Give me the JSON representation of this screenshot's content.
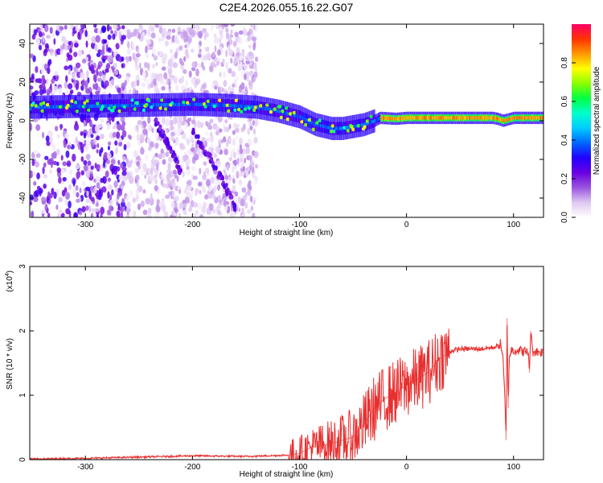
{
  "chart_data": [
    {
      "type": "heatmap",
      "title": "C2E4.2026.055.16.22.G07",
      "xlabel": "Height of straight line (km)",
      "ylabel": "Frequency (Hz)",
      "xlim": [
        -352,
        128
      ],
      "ylim": [
        -50,
        50
      ],
      "xticks": [
        -300,
        -200,
        -100,
        0,
        100
      ],
      "yticks": [
        -40,
        -20,
        0,
        20,
        40
      ],
      "colorbar": {
        "label": "Normalized spectral amplitude",
        "range": [
          0,
          1
        ],
        "ticks": [
          "0.0",
          "0.2",
          "0.4",
          "0.6",
          "0.8"
        ],
        "stops": [
          "#ffffff",
          "#e0c8f2",
          "#9a55e0",
          "#6a00e0",
          "#2200ff",
          "#0066ff",
          "#00ccff",
          "#00ffcc",
          "#00ff44",
          "#88ff00",
          "#ffff00",
          "#ff9900",
          "#ff3300",
          "#ff0066"
        ],
        "placement": "right"
      },
      "ridge": {
        "name": "dominant frequency",
        "x": [
          -352,
          -300,
          -250,
          -200,
          -170,
          -140,
          -120,
          -100,
          -85,
          -70,
          -60,
          -50,
          -40,
          -30,
          -25,
          -10,
          0,
          20,
          40,
          60,
          80,
          85,
          90,
          100,
          128
        ],
        "y": [
          7,
          7.5,
          8,
          8.5,
          8,
          7,
          5,
          2,
          -2,
          -4,
          -4,
          -3,
          -2,
          0,
          1.5,
          1,
          1.5,
          1.5,
          1.5,
          1.5,
          1.5,
          1,
          0,
          1.5,
          1.5
        ]
      },
      "secondary_tracks": [
        {
          "x": [
            -200,
            -185,
            -170,
            -160
          ],
          "y": [
            -5,
            -18,
            -33,
            -45
          ]
        },
        {
          "x": [
            -235,
            -220,
            -210
          ],
          "y": [
            0,
            -15,
            -28
          ]
        }
      ],
      "scatter_region": {
        "x": [
          -352,
          -140
        ],
        "y": [
          -50,
          50
        ]
      }
    },
    {
      "type": "line",
      "title": "",
      "xlabel": "Height of straight line (km)",
      "ylabel": "SNR (10 * v/v)",
      "multiplier": "(x10",
      "multiplier_exp": "4",
      "multiplier_close": ")",
      "xlim": [
        -352,
        128
      ],
      "ylim": [
        0,
        3
      ],
      "xticks": [
        -300,
        -200,
        -100,
        0,
        100
      ],
      "yticks": [
        0,
        1,
        2,
        3
      ],
      "color": "#e83030",
      "series": [
        {
          "x": [
            -352,
            -300,
            -250,
            -200,
            -150,
            -110,
            -100,
            -90,
            -80,
            -70,
            -60,
            -50,
            -40,
            -30,
            -20,
            -10,
            0,
            10,
            20,
            30,
            40,
            50,
            60,
            70,
            80,
            85,
            88,
            90,
            92,
            93,
            94,
            95,
            96,
            98,
            100,
            105,
            110,
            114,
            115,
            116,
            118,
            120,
            128
          ],
          "y": [
            0.01,
            0.02,
            0.04,
            0.06,
            0.05,
            0.07,
            0.1,
            0.18,
            0.22,
            0.25,
            0.3,
            0.35,
            0.55,
            0.8,
            0.95,
            1.05,
            1.15,
            1.25,
            1.35,
            1.55,
            1.68,
            1.72,
            1.72,
            1.72,
            1.74,
            1.76,
            1.8,
            1.6,
            0.9,
            0.3,
            2.2,
            0.8,
            1.6,
            1.7,
            1.7,
            1.7,
            1.68,
            1.66,
            1.35,
            2.0,
            1.68,
            1.68,
            1.67
          ]
        }
      ]
    }
  ]
}
